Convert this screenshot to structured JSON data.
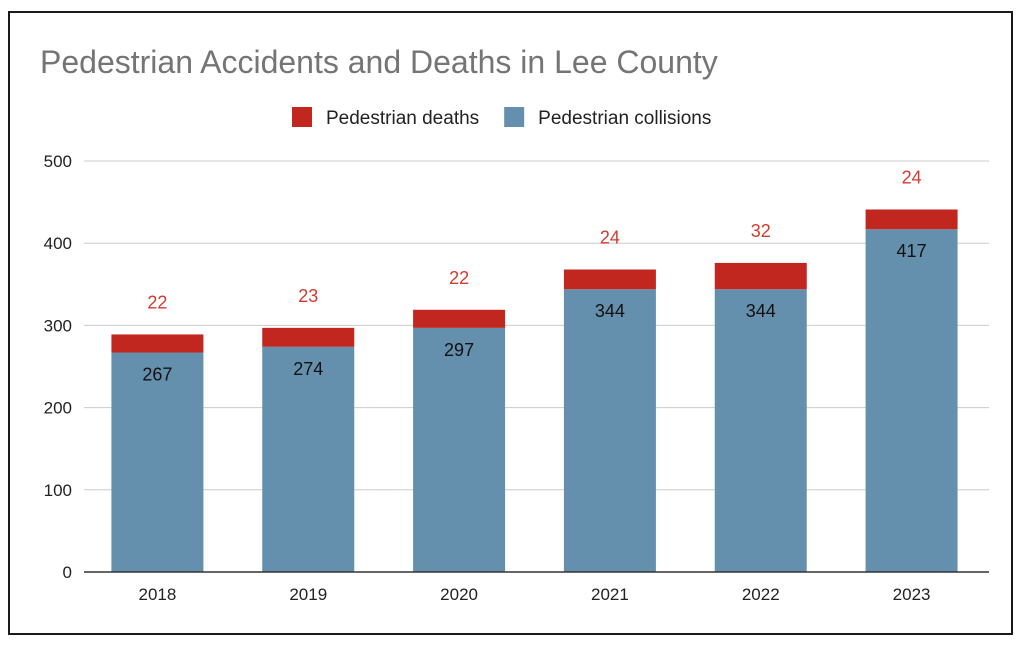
{
  "chart_data": {
    "type": "bar",
    "stacked": true,
    "title": "Pedestrian Accidents and Deaths in Lee County",
    "xlabel": "",
    "ylabel": "",
    "categories": [
      "2018",
      "2019",
      "2020",
      "2021",
      "2022",
      "2023"
    ],
    "series": [
      {
        "name": "Pedestrian collisions",
        "color": "#6590ad",
        "label_color": "#111111",
        "values": [
          267,
          274,
          297,
          344,
          344,
          417
        ]
      },
      {
        "name": "Pedestrian deaths",
        "color": "#c1271f",
        "label_color": "#d33a2f",
        "values": [
          22,
          23,
          22,
          24,
          32,
          24
        ]
      }
    ],
    "legend_order": [
      "Pedestrian deaths",
      "Pedestrian collisions"
    ],
    "ylim": [
      0,
      500
    ],
    "yticks": [
      0,
      100,
      200,
      300,
      400,
      500
    ],
    "grid": true,
    "legend_position": "top-center"
  }
}
